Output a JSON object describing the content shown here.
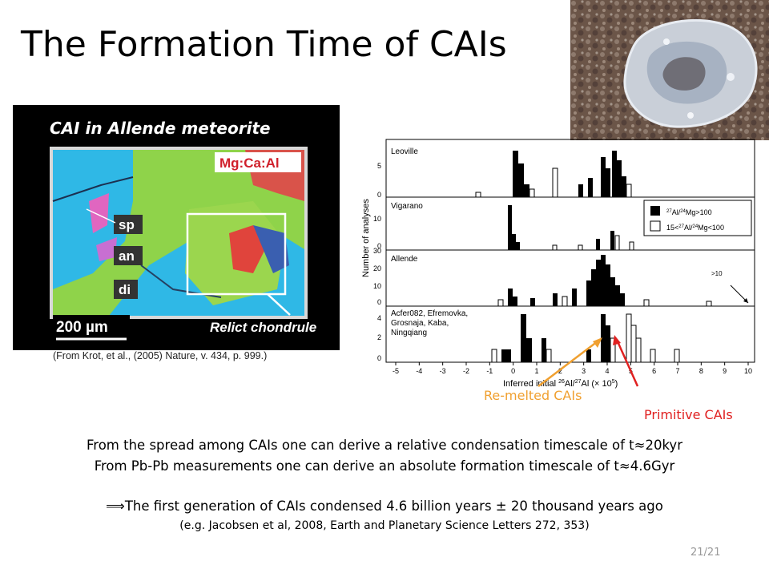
{
  "slide": {
    "title": "The Formation Time of CAIs",
    "page_number": "21/21"
  },
  "micrograph": {
    "title": "CAI  in  Allende  meteorite",
    "legend": "Mg:Ca:Al",
    "mineral_labels": [
      "sp",
      "an",
      "di"
    ],
    "scale_bar": "200 µm",
    "relict_label": "Relict chondrule",
    "caption": "(From Krot, et al., (2005) Nature, v. 434, p. 999.)"
  },
  "histogram": {
    "ylabel": "Number of analyses",
    "xlabel": "Inferred initial 26Al/27Al (× 10^5)",
    "xlabel_parts": {
      "pre": "Inferred initial ",
      "sup1": "26",
      "mid": "Al/",
      "sup2": "27",
      "post": "Al (× 10",
      "sup3": "5",
      "close": ")"
    },
    "x_ticks": [
      "-5",
      "-4",
      "-3",
      "-2",
      "-1",
      "0",
      "1",
      "2",
      "3",
      "4",
      "5",
      "6",
      "7",
      "8",
      "9",
      "10"
    ],
    "legend": [
      {
        "pre": "27",
        "mid": "Al/",
        "sup": "24",
        "post": "Mg>100",
        "fill": "black"
      },
      {
        "pre": "15<",
        "sup0": "27",
        "mid": "Al/",
        "sup": "24",
        "post": "Mg<100",
        "fill": "white"
      }
    ],
    "annotation": ">10",
    "panels": [
      {
        "name": "Leoville",
        "y_ticks": [
          "0",
          "5"
        ]
      },
      {
        "name": "Vigarano",
        "y_ticks": [
          "0",
          "10"
        ]
      },
      {
        "name": "Allende",
        "y_ticks": [
          "0",
          "10",
          "20",
          "30"
        ]
      },
      {
        "name": "Acfer082, Efremovka, Grosnaja, Kaba, Ningqiang",
        "name_lines": [
          "Acfer082, Efremovka,",
          "Grosnaja, Kaba,",
          "Ningqiang"
        ],
        "y_ticks": [
          "0",
          "2",
          "4"
        ]
      }
    ]
  },
  "annotations": {
    "remelted": "Re-melted CAIs",
    "primitive": "Primitive CAIs"
  },
  "text": {
    "line1": "From the spread among CAIs one can derive a relative  condensation timescale of t≈20kyr",
    "line2": "From Pb-Pb measurements one can derive an absolute formation timescale of t≈4.6Gyr",
    "implies_symbol": "⟹",
    "line3": "The first generation of CAIs condensed 4.6 billion years ± 20 thousand years ago",
    "line4": "(e.g. Jacobsen et al, 2008, Earth and Planetary Science Letters 272, 353)"
  },
  "colors": {
    "remelted_arrow": "#f0a030",
    "primitive_arrow": "#e02020",
    "micro_bg": "#000000",
    "cai_blue": "#2fb8e6",
    "cai_green": "#8fd34a",
    "cai_red": "#e0443c"
  }
}
